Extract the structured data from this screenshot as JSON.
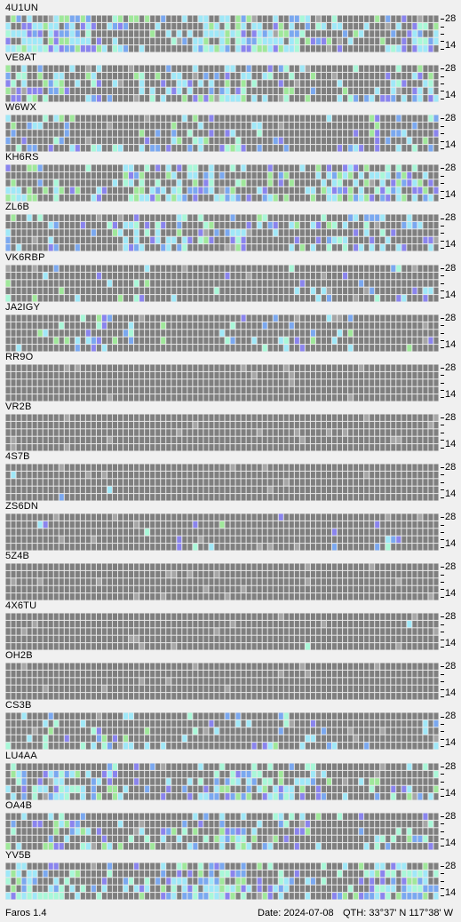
{
  "app": {
    "name_version": "Faros 1.4"
  },
  "status": {
    "date": "Date: 2024-07-08",
    "qth": "QTH: 33°37' N  117°38' W"
  },
  "scale": {
    "top_label": "28",
    "bottom_label": "14"
  },
  "colors": {
    "cell_empty": "#7f7f7f",
    "cell_missing": "#a6a6a6",
    "signal_weak": "#7aa8f0",
    "signal_medium": "#9fe8f8",
    "signal_strong": "#a8f8d8",
    "signal_very_strong": "#9fe89a",
    "signal_unusual": "#8a84ee"
  },
  "beacons": [
    {
      "callsign": "4U1UN",
      "activity": 0.62
    },
    {
      "callsign": "VE8AT",
      "activity": 0.4
    },
    {
      "callsign": "W6WX",
      "activity": 0.22
    },
    {
      "callsign": "KH6RS",
      "activity": 0.55
    },
    {
      "callsign": "ZL6B",
      "activity": 0.38
    },
    {
      "callsign": "VK6RBP",
      "activity": 0.12
    },
    {
      "callsign": "JA2IGY",
      "activity": 0.18
    },
    {
      "callsign": "RR9O",
      "activity": 0.0
    },
    {
      "callsign": "VR2B",
      "activity": 0.0
    },
    {
      "callsign": "4S7B",
      "activity": 0.01
    },
    {
      "callsign": "ZS6DN",
      "activity": 0.03
    },
    {
      "callsign": "5Z4B",
      "activity": 0.0
    },
    {
      "callsign": "4X6TU",
      "activity": 0.01
    },
    {
      "callsign": "OH2B",
      "activity": 0.0
    },
    {
      "callsign": "CS3B",
      "activity": 0.2
    },
    {
      "callsign": "LU4AA",
      "activity": 0.42
    },
    {
      "callsign": "OA4B",
      "activity": 0.35
    },
    {
      "callsign": "YV5B",
      "activity": 0.6
    }
  ]
}
